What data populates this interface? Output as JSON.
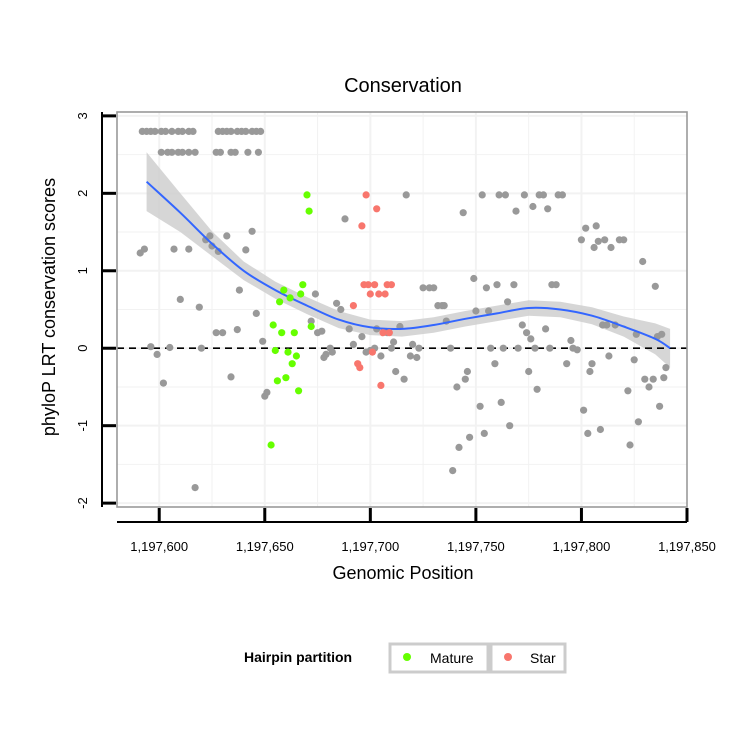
{
  "chart_data": {
    "type": "scatter",
    "title": "Conservation",
    "xlabel": "Genomic Position",
    "ylabel": "phyloP LRT conservation scores",
    "xlim": [
      1197580,
      1197850
    ],
    "ylim": [
      -2.05,
      3.05
    ],
    "x_ticks": [
      1197600,
      1197650,
      1197700,
      1197750,
      1197800,
      1197850
    ],
    "x_tick_labels": [
      "1,197,600",
      "1,197,650",
      "1,197,700",
      "1,197,750",
      "1,197,800",
      "1,197,850"
    ],
    "y_ticks": [
      -2,
      -1,
      0,
      1,
      2,
      3
    ],
    "y_tick_labels": [
      "-2",
      "-1",
      "0",
      "1",
      "2",
      "3"
    ],
    "reference_line": {
      "y": 0,
      "style": "dashed",
      "color": "#000000"
    },
    "colors": {
      "other": "#999999",
      "mature": "#66ff00",
      "star": "#f8766d",
      "smooth": "#3366ff",
      "ribbon": "#cccccc",
      "panel_border": "#999999",
      "grid": "#f2f2f2"
    },
    "legend": {
      "title": "Hairpin partition",
      "position": "bottom",
      "entries": [
        {
          "label": "Mature",
          "color": "#66ff00"
        },
        {
          "label": "Star",
          "color": "#f8766d"
        }
      ]
    },
    "series": [
      {
        "name": "Other",
        "color": "#999999",
        "points": [
          [
            1197592,
            2.8
          ],
          [
            1197594,
            2.8
          ],
          [
            1197596,
            2.8
          ],
          [
            1197598,
            2.8
          ],
          [
            1197601,
            2.8
          ],
          [
            1197603,
            2.8
          ],
          [
            1197606,
            2.8
          ],
          [
            1197609,
            2.8
          ],
          [
            1197611,
            2.8
          ],
          [
            1197614,
            2.8
          ],
          [
            1197616,
            2.8
          ],
          [
            1197601,
            2.53
          ],
          [
            1197604,
            2.53
          ],
          [
            1197606,
            2.53
          ],
          [
            1197609,
            2.53
          ],
          [
            1197611,
            2.53
          ],
          [
            1197614,
            2.53
          ],
          [
            1197617,
            2.53
          ],
          [
            1197628,
            2.8
          ],
          [
            1197630,
            2.8
          ],
          [
            1197632,
            2.8
          ],
          [
            1197634,
            2.8
          ],
          [
            1197637,
            2.8
          ],
          [
            1197639,
            2.8
          ],
          [
            1197641,
            2.8
          ],
          [
            1197644,
            2.8
          ],
          [
            1197646,
            2.8
          ],
          [
            1197648,
            2.8
          ],
          [
            1197627,
            2.53
          ],
          [
            1197629,
            2.53
          ],
          [
            1197634,
            2.53
          ],
          [
            1197636,
            2.53
          ],
          [
            1197642,
            2.53
          ],
          [
            1197647,
            2.53
          ],
          [
            1197591,
            1.23
          ],
          [
            1197593,
            1.28
          ],
          [
            1197596,
            0.02
          ],
          [
            1197599,
            -0.08
          ],
          [
            1197602,
            -0.45
          ],
          [
            1197605,
            0.01
          ],
          [
            1197607,
            1.28
          ],
          [
            1197610,
            0.63
          ],
          [
            1197614,
            1.28
          ],
          [
            1197617,
            -1.8
          ],
          [
            1197619,
            0.53
          ],
          [
            1197620,
            0.0
          ],
          [
            1197622,
            1.4
          ],
          [
            1197624,
            1.45
          ],
          [
            1197625,
            1.32
          ],
          [
            1197627,
            0.2
          ],
          [
            1197628,
            1.25
          ],
          [
            1197630,
            0.2
          ],
          [
            1197632,
            1.45
          ],
          [
            1197634,
            -0.37
          ],
          [
            1197637,
            0.24
          ],
          [
            1197638,
            0.75
          ],
          [
            1197641,
            1.27
          ],
          [
            1197644,
            1.51
          ],
          [
            1197646,
            0.45
          ],
          [
            1197649,
            0.09
          ],
          [
            1197650,
            -0.62
          ],
          [
            1197651,
            -0.57
          ],
          [
            1197672,
            0.35
          ],
          [
            1197674,
            0.7
          ],
          [
            1197675,
            0.2
          ],
          [
            1197677,
            0.22
          ],
          [
            1197678,
            -0.12
          ],
          [
            1197679,
            -0.08
          ],
          [
            1197681,
            0.0
          ],
          [
            1197682,
            -0.05
          ],
          [
            1197684,
            0.58
          ],
          [
            1197686,
            0.5
          ],
          [
            1197688,
            1.67
          ],
          [
            1197690,
            0.25
          ],
          [
            1197692,
            0.05
          ],
          [
            1197696,
            0.15
          ],
          [
            1197698,
            -0.05
          ],
          [
            1197700,
            -0.03
          ],
          [
            1197702,
            0.0
          ],
          [
            1197703,
            0.25
          ],
          [
            1197705,
            -0.1
          ],
          [
            1197708,
            0.2
          ],
          [
            1197710,
            0.0
          ],
          [
            1197711,
            0.08
          ],
          [
            1197712,
            -0.3
          ],
          [
            1197714,
            0.28
          ],
          [
            1197716,
            -0.4
          ],
          [
            1197717,
            1.98
          ],
          [
            1197719,
            -0.1
          ],
          [
            1197720,
            0.05
          ],
          [
            1197722,
            -0.12
          ],
          [
            1197723,
            0.0
          ],
          [
            1197725,
            0.78
          ],
          [
            1197728,
            0.78
          ],
          [
            1197730,
            0.78
          ],
          [
            1197732,
            0.55
          ],
          [
            1197734,
            0.55
          ],
          [
            1197735,
            0.55
          ],
          [
            1197736,
            0.35
          ],
          [
            1197738,
            0.0
          ],
          [
            1197739,
            -1.58
          ],
          [
            1197741,
            -0.5
          ],
          [
            1197742,
            -1.28
          ],
          [
            1197744,
            1.75
          ],
          [
            1197745,
            -0.4
          ],
          [
            1197746,
            -0.3
          ],
          [
            1197747,
            -1.15
          ],
          [
            1197749,
            0.9
          ],
          [
            1197750,
            0.48
          ],
          [
            1197752,
            -0.75
          ],
          [
            1197753,
            1.98
          ],
          [
            1197754,
            -1.1
          ],
          [
            1197755,
            0.78
          ],
          [
            1197756,
            0.48
          ],
          [
            1197757,
            0.0
          ],
          [
            1197759,
            -0.2
          ],
          [
            1197760,
            0.82
          ],
          [
            1197761,
            1.98
          ],
          [
            1197762,
            -0.7
          ],
          [
            1197763,
            0.0
          ],
          [
            1197764,
            1.98
          ],
          [
            1197765,
            0.6
          ],
          [
            1197766,
            -1.0
          ],
          [
            1197768,
            0.82
          ],
          [
            1197769,
            1.77
          ],
          [
            1197770,
            0.0
          ],
          [
            1197772,
            0.3
          ],
          [
            1197773,
            1.98
          ],
          [
            1197774,
            0.2
          ],
          [
            1197775,
            -0.3
          ],
          [
            1197776,
            0.12
          ],
          [
            1197777,
            1.83
          ],
          [
            1197778,
            0.0
          ],
          [
            1197779,
            -0.53
          ],
          [
            1197780,
            1.98
          ],
          [
            1197782,
            1.98
          ],
          [
            1197783,
            0.25
          ],
          [
            1197784,
            1.8
          ],
          [
            1197785,
            0.0
          ],
          [
            1197786,
            0.82
          ],
          [
            1197788,
            0.82
          ],
          [
            1197789,
            1.98
          ],
          [
            1197791,
            1.98
          ],
          [
            1197793,
            -0.2
          ],
          [
            1197795,
            0.1
          ],
          [
            1197796,
            0.0
          ],
          [
            1197798,
            -0.02
          ],
          [
            1197800,
            1.4
          ],
          [
            1197801,
            -0.8
          ],
          [
            1197802,
            1.55
          ],
          [
            1197803,
            -1.1
          ],
          [
            1197804,
            -0.3
          ],
          [
            1197805,
            -0.2
          ],
          [
            1197806,
            1.3
          ],
          [
            1197807,
            1.58
          ],
          [
            1197808,
            1.38
          ],
          [
            1197809,
            -1.05
          ],
          [
            1197810,
            0.3
          ],
          [
            1197811,
            1.4
          ],
          [
            1197812,
            0.3
          ],
          [
            1197813,
            -0.1
          ],
          [
            1197814,
            1.3
          ],
          [
            1197816,
            0.3
          ],
          [
            1197818,
            1.4
          ],
          [
            1197820,
            1.4
          ],
          [
            1197822,
            -0.55
          ],
          [
            1197823,
            -1.25
          ],
          [
            1197825,
            -0.15
          ],
          [
            1197826,
            0.18
          ],
          [
            1197827,
            -0.95
          ],
          [
            1197829,
            1.12
          ],
          [
            1197830,
            -0.4
          ],
          [
            1197832,
            -0.5
          ],
          [
            1197834,
            -0.4
          ],
          [
            1197835,
            0.8
          ],
          [
            1197836,
            0.15
          ],
          [
            1197837,
            -0.75
          ],
          [
            1197838,
            0.18
          ],
          [
            1197839,
            -0.38
          ],
          [
            1197840,
            -0.25
          ]
        ]
      },
      {
        "name": "Mature",
        "color": "#66ff00",
        "points": [
          [
            1197653,
            -1.25
          ],
          [
            1197654,
            0.3
          ],
          [
            1197655,
            -0.03
          ],
          [
            1197656,
            -0.42
          ],
          [
            1197657,
            0.6
          ],
          [
            1197658,
            0.2
          ],
          [
            1197659,
            0.75
          ],
          [
            1197660,
            -0.38
          ],
          [
            1197661,
            -0.05
          ],
          [
            1197662,
            0.65
          ],
          [
            1197663,
            -0.2
          ],
          [
            1197664,
            0.2
          ],
          [
            1197665,
            -0.1
          ],
          [
            1197666,
            -0.55
          ],
          [
            1197667,
            0.7
          ],
          [
            1197668,
            0.82
          ],
          [
            1197670,
            1.98
          ],
          [
            1197671,
            1.77
          ],
          [
            1197672,
            0.28
          ]
        ]
      },
      {
        "name": "Star",
        "color": "#f8766d",
        "points": [
          [
            1197692,
            0.55
          ],
          [
            1197694,
            -0.2
          ],
          [
            1197695,
            -0.25
          ],
          [
            1197696,
            1.58
          ],
          [
            1197697,
            0.82
          ],
          [
            1197698,
            1.98
          ],
          [
            1197699,
            0.82
          ],
          [
            1197700,
            0.7
          ],
          [
            1197701,
            -0.05
          ],
          [
            1197702,
            0.82
          ],
          [
            1197703,
            1.8
          ],
          [
            1197704,
            0.7
          ],
          [
            1197705,
            -0.48
          ],
          [
            1197706,
            0.2
          ],
          [
            1197707,
            0.7
          ],
          [
            1197708,
            0.82
          ],
          [
            1197709,
            0.2
          ],
          [
            1197710,
            0.82
          ]
        ]
      }
    ],
    "smooth": {
      "name": "loess fit",
      "x": [
        1197594,
        1197610,
        1197625,
        1197640,
        1197655,
        1197670,
        1197685,
        1197700,
        1197715,
        1197730,
        1197745,
        1197760,
        1197775,
        1197790,
        1197805,
        1197820,
        1197835,
        1197842
      ],
      "y": [
        2.15,
        1.75,
        1.35,
        1.0,
        0.75,
        0.55,
        0.37,
        0.27,
        0.25,
        0.3,
        0.38,
        0.45,
        0.52,
        0.5,
        0.42,
        0.28,
        0.12,
        0.0
      ],
      "ribbon_halfwidth": [
        0.38,
        0.25,
        0.16,
        0.12,
        0.11,
        0.11,
        0.11,
        0.1,
        0.1,
        0.1,
        0.1,
        0.1,
        0.1,
        0.1,
        0.11,
        0.13,
        0.2,
        0.25
      ]
    }
  }
}
